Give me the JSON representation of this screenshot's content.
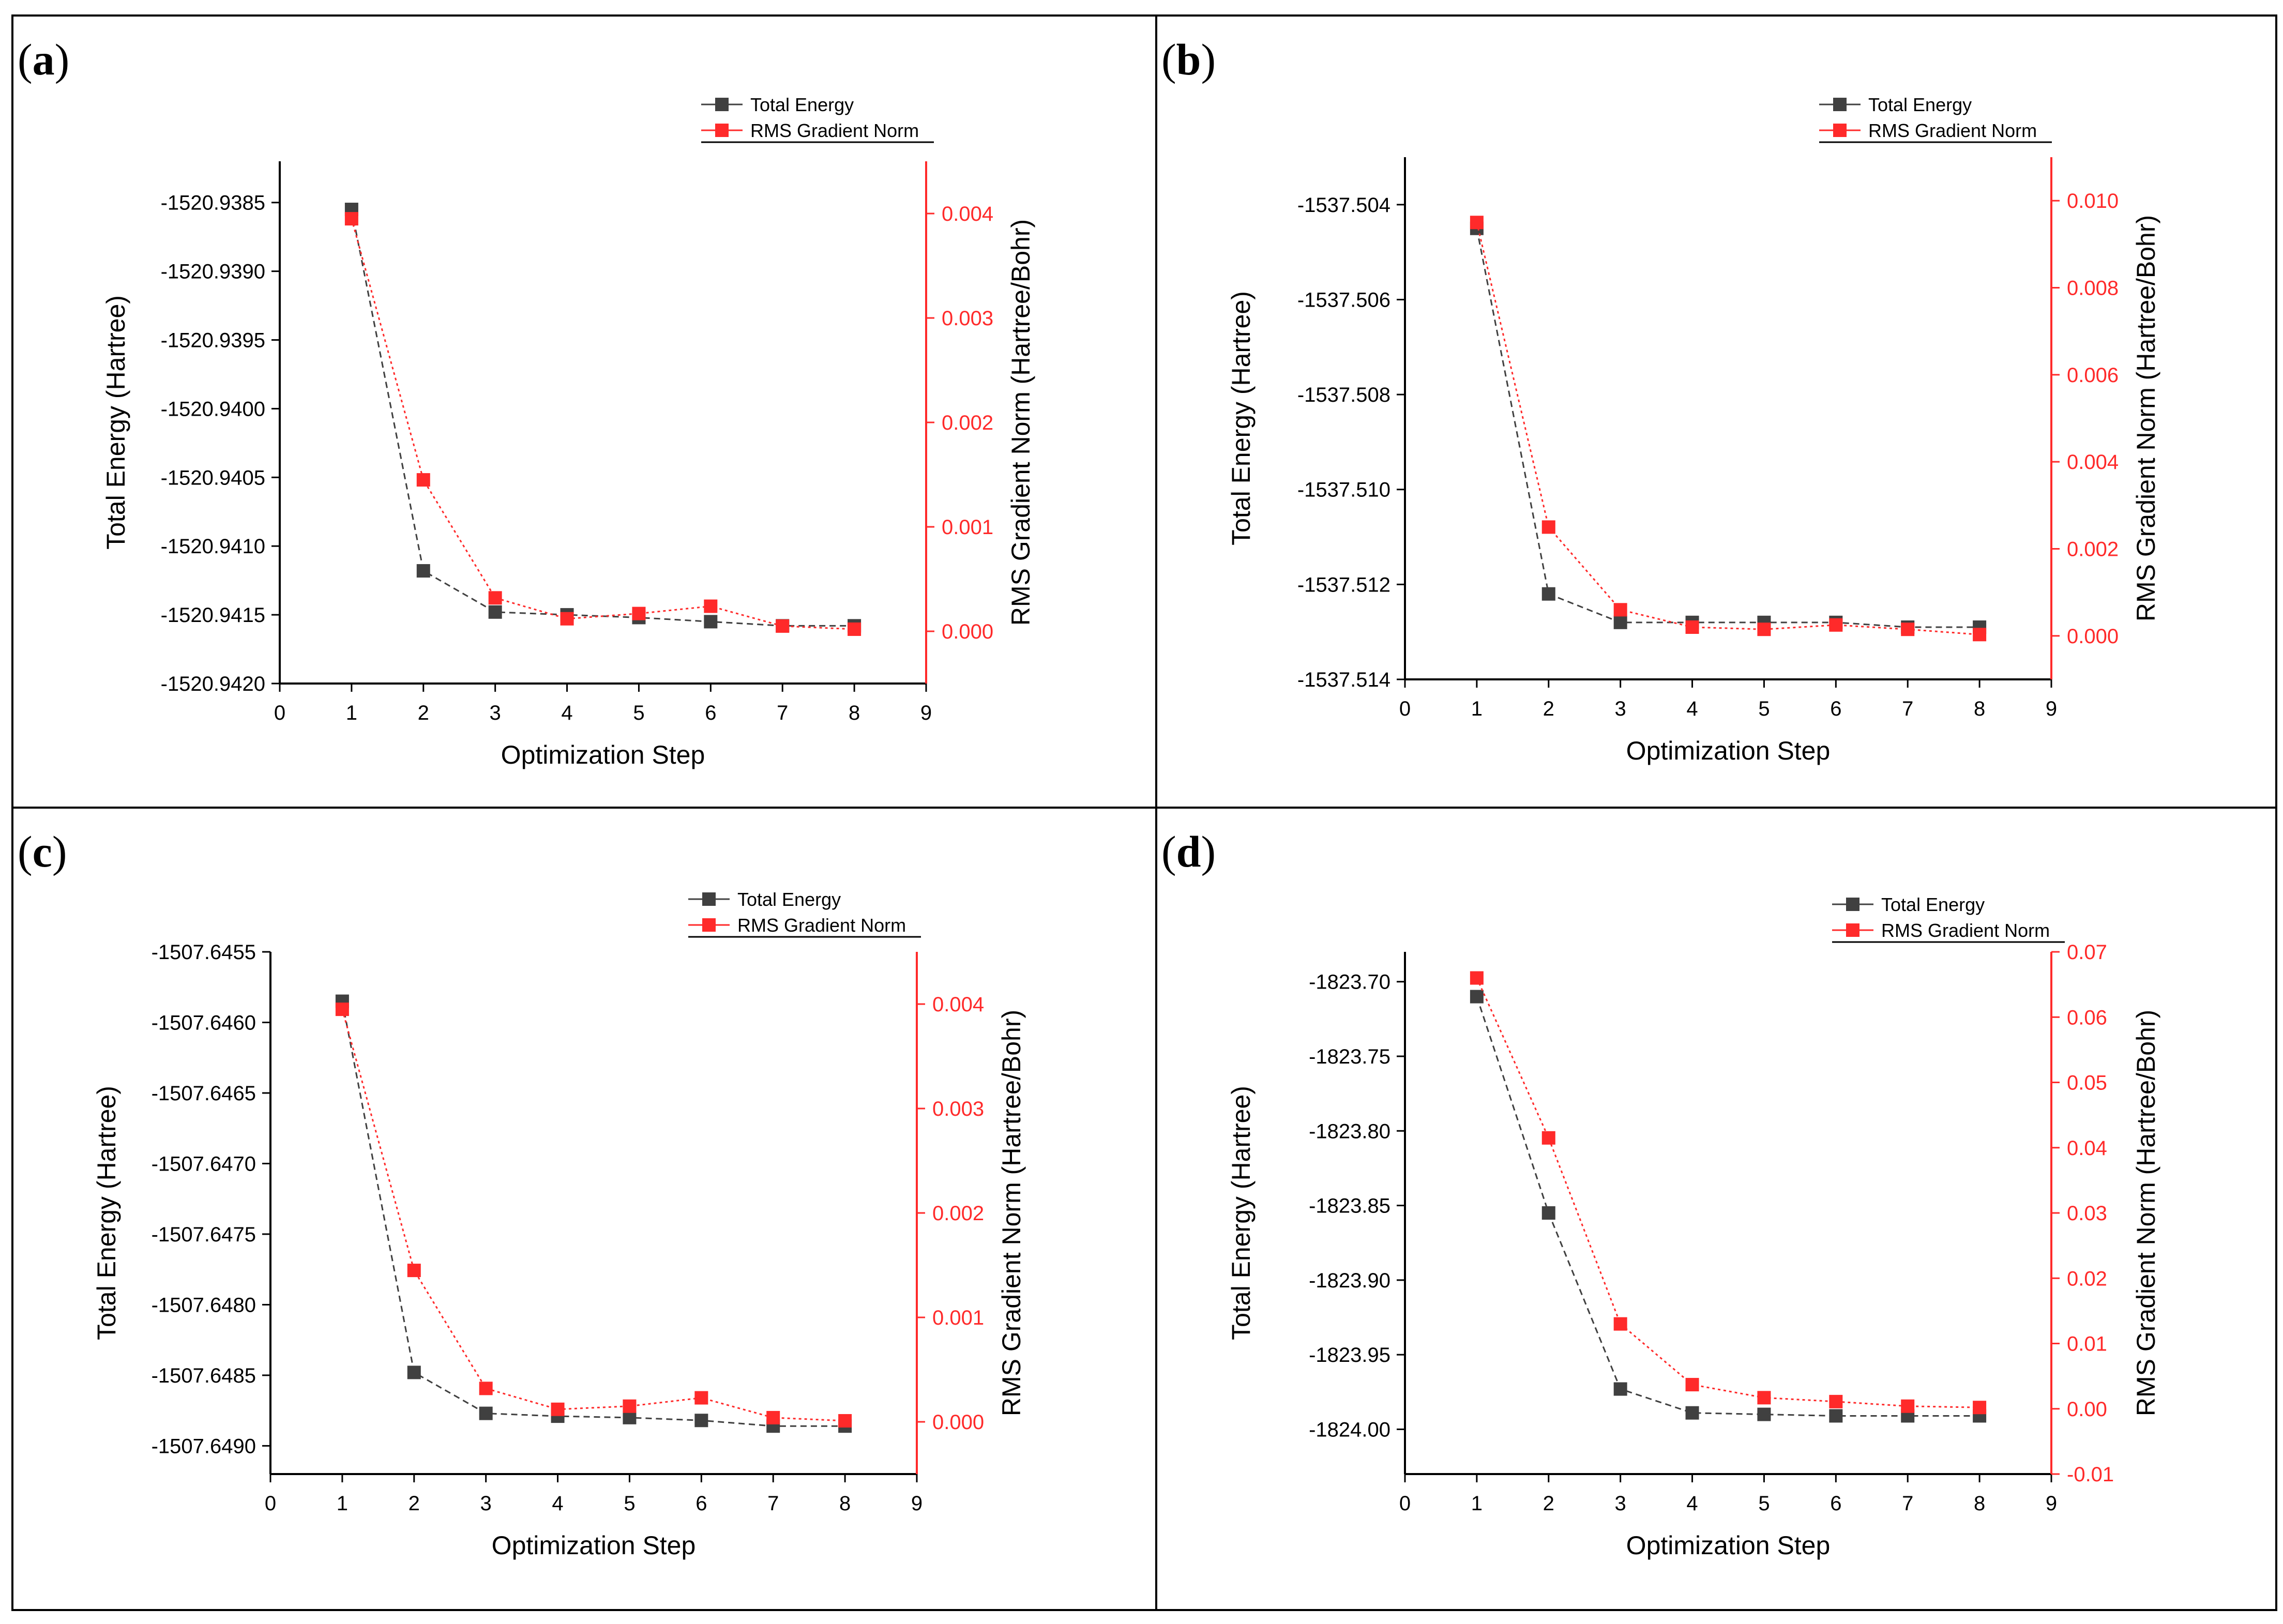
{
  "chart_data": [
    {
      "panel_label": "a",
      "type": "line",
      "xlabel": "Optimization Step",
      "ylabel": "Total Energy (Hartree)",
      "y2label": "RMS Gradient Norm (Hartree/Bohr)",
      "xlim": [
        0,
        9
      ],
      "xticks": [
        "0",
        "1",
        "2",
        "3",
        "4",
        "5",
        "6",
        "7",
        "8",
        "9"
      ],
      "ylim": [
        -1520.942,
        -1520.9382
      ],
      "yticks": [
        "-1520.9385",
        "-1520.9390",
        "-1520.9395",
        "-1520.9400",
        "-1520.9405",
        "-1520.9410",
        "-1520.9415",
        "-1520.9420"
      ],
      "ytick_values": [
        -1520.9385,
        -1520.939,
        -1520.9395,
        -1520.94,
        -1520.9405,
        -1520.941,
        -1520.9415,
        -1520.942
      ],
      "y2lim": [
        -0.0005,
        0.0045
      ],
      "y2ticks": [
        "0.000",
        "0.001",
        "0.002",
        "0.003",
        "0.004"
      ],
      "y2tick_values": [
        0.0,
        0.001,
        0.002,
        0.003,
        0.004
      ],
      "legend": [
        "Total Energy",
        "RMS Gradient Norm"
      ],
      "legend_placement": "top-right",
      "series": [
        {
          "name": "Total Energy",
          "axis": "left",
          "color": "#404040",
          "x": [
            1,
            2,
            3,
            4,
            5,
            6,
            7,
            8
          ],
          "values": [
            -1520.93855,
            -1520.94118,
            -1520.94148,
            -1520.9415,
            -1520.94152,
            -1520.94155,
            -1520.94158,
            -1520.94158
          ]
        },
        {
          "name": "RMS Gradient Norm",
          "axis": "right",
          "color": "#ff2a2a",
          "x": [
            1,
            2,
            3,
            4,
            5,
            6,
            7,
            8
          ],
          "values": [
            0.00395,
            0.00145,
            0.00032,
            0.00012,
            0.00017,
            0.00024,
            5e-05,
            2e-05
          ]
        }
      ]
    },
    {
      "panel_label": "b",
      "type": "line",
      "xlabel": "Optimization Step",
      "ylabel": "Total Energy (Hartree)",
      "y2label": "RMS Gradient Norm (Hartree/Bohr)",
      "xlim": [
        0,
        9
      ],
      "xticks": [
        "0",
        "1",
        "2",
        "3",
        "4",
        "5",
        "6",
        "7",
        "8",
        "9"
      ],
      "ylim": [
        -1537.514,
        -1537.503
      ],
      "yticks": [
        "-1537.504",
        "-1537.506",
        "-1537.508",
        "-1537.510",
        "-1537.512",
        "-1537.514"
      ],
      "ytick_values": [
        -1537.504,
        -1537.506,
        -1537.508,
        -1537.51,
        -1537.512,
        -1537.514
      ],
      "y2lim": [
        -0.001,
        0.011
      ],
      "y2ticks": [
        "0.000",
        "0.002",
        "0.004",
        "0.006",
        "0.008",
        "0.010"
      ],
      "y2tick_values": [
        0.0,
        0.002,
        0.004,
        0.006,
        0.008,
        0.01
      ],
      "legend": [
        "Total Energy",
        "RMS Gradient Norm"
      ],
      "legend_placement": "top-right",
      "series": [
        {
          "name": "Total Energy",
          "axis": "left",
          "color": "#404040",
          "x": [
            1,
            2,
            3,
            4,
            5,
            6,
            7,
            8
          ],
          "values": [
            -1537.5045,
            -1537.5122,
            -1537.5128,
            -1537.5128,
            -1537.5128,
            -1537.5128,
            -1537.5129,
            -1537.5129
          ]
        },
        {
          "name": "RMS Gradient Norm",
          "axis": "right",
          "color": "#ff2a2a",
          "x": [
            1,
            2,
            3,
            4,
            5,
            6,
            7,
            8
          ],
          "values": [
            0.0095,
            0.0025,
            0.0006,
            0.0002,
            0.00015,
            0.00025,
            0.00015,
            3e-05
          ]
        }
      ]
    },
    {
      "panel_label": "c",
      "type": "line",
      "xlabel": "Optimization Step",
      "ylabel": "Total Energy (Hartree)",
      "y2label": "RMS Gradient Norm (Hartree/Bohr)",
      "xlim": [
        0,
        9
      ],
      "xticks": [
        "0",
        "1",
        "2",
        "3",
        "4",
        "5",
        "6",
        "7",
        "8",
        "9"
      ],
      "ylim": [
        -1507.6492,
        -1507.6455
      ],
      "yticks": [
        "-1507.6455",
        "-1507.6460",
        "-1507.6465",
        "-1507.6470",
        "-1507.6475",
        "-1507.6480",
        "-1507.6485",
        "-1507.6490"
      ],
      "ytick_values": [
        -1507.6455,
        -1507.646,
        -1507.6465,
        -1507.647,
        -1507.6475,
        -1507.648,
        -1507.6485,
        -1507.649
      ],
      "y2lim": [
        -0.0005,
        0.0045
      ],
      "y2ticks": [
        "0.000",
        "0.001",
        "0.002",
        "0.003",
        "0.004"
      ],
      "y2tick_values": [
        0.0,
        0.001,
        0.002,
        0.003,
        0.004
      ],
      "legend": [
        "Total Energy",
        "RMS Gradient Norm"
      ],
      "legend_placement": "top-right",
      "series": [
        {
          "name": "Total Energy",
          "axis": "left",
          "color": "#404040",
          "x": [
            1,
            2,
            3,
            4,
            5,
            6,
            7,
            8
          ],
          "values": [
            -1507.64585,
            -1507.64848,
            -1507.64877,
            -1507.64879,
            -1507.6488,
            -1507.64882,
            -1507.64886,
            -1507.64886
          ]
        },
        {
          "name": "RMS Gradient Norm",
          "axis": "right",
          "color": "#ff2a2a",
          "x": [
            1,
            2,
            3,
            4,
            5,
            6,
            7,
            8
          ],
          "values": [
            0.00395,
            0.00145,
            0.00032,
            0.00012,
            0.00015,
            0.00023,
            4e-05,
            1e-05
          ]
        }
      ]
    },
    {
      "panel_label": "d",
      "type": "line",
      "xlabel": "Optimization Step",
      "ylabel": "Total Energy (Hartree)",
      "y2label": "RMS Gradient Norm (Hartree/Bohr)",
      "xlim": [
        0,
        9
      ],
      "xticks": [
        "0",
        "1",
        "2",
        "3",
        "4",
        "5",
        "6",
        "7",
        "8",
        "9"
      ],
      "ylim": [
        -1824.03,
        -1823.68
      ],
      "yticks": [
        "-1823.70",
        "-1823.75",
        "-1823.80",
        "-1823.85",
        "-1823.90",
        "-1823.95",
        "-1824.00"
      ],
      "ytick_values": [
        -1823.7,
        -1823.75,
        -1823.8,
        -1823.85,
        -1823.9,
        -1823.95,
        -1824.0
      ],
      "y2lim": [
        -0.01,
        0.07
      ],
      "y2ticks": [
        "-0.01",
        "0.00",
        "0.01",
        "0.02",
        "0.03",
        "0.04",
        "0.05",
        "0.06",
        "0.07"
      ],
      "y2tick_values": [
        -0.01,
        0.0,
        0.01,
        0.02,
        0.03,
        0.04,
        0.05,
        0.06,
        0.07
      ],
      "legend": [
        "Total Energy",
        "RMS Gradient Norm"
      ],
      "legend_placement": "top-right",
      "series": [
        {
          "name": "Total Energy",
          "axis": "left",
          "color": "#404040",
          "x": [
            1,
            2,
            3,
            4,
            5,
            6,
            7,
            8
          ],
          "values": [
            -1823.71,
            -1823.855,
            -1823.973,
            -1823.989,
            -1823.99,
            -1823.991,
            -1823.991,
            -1823.991
          ]
        },
        {
          "name": "RMS Gradient Norm",
          "axis": "right",
          "color": "#ff2a2a",
          "x": [
            1,
            2,
            3,
            4,
            5,
            6,
            7,
            8
          ],
          "values": [
            0.066,
            0.0415,
            0.013,
            0.0037,
            0.0017,
            0.0011,
            0.0004,
            0.0002
          ]
        }
      ]
    }
  ]
}
